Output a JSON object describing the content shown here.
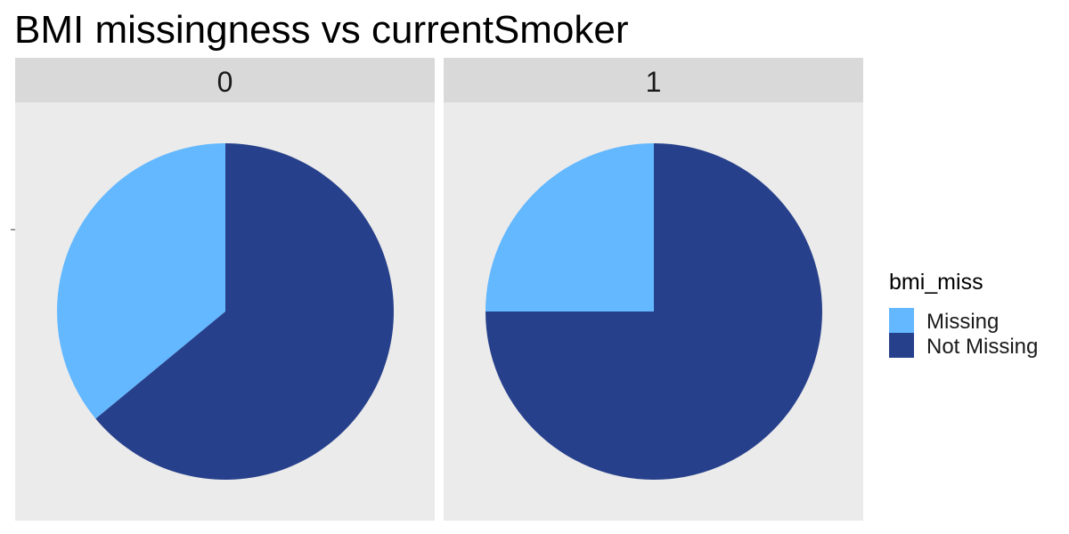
{
  "chart_data": {
    "type": "pie",
    "title": "BMI missingness vs currentSmoker",
    "facet_levels": [
      "0",
      "1"
    ],
    "categories": [
      "Missing",
      "Not Missing"
    ],
    "facets": [
      {
        "name": "0",
        "values": [
          0.36,
          0.64
        ]
      },
      {
        "name": "1",
        "values": [
          0.25,
          0.75
        ]
      }
    ],
    "legend": {
      "title": "bmi_miss",
      "position": "right",
      "entries": [
        "Missing",
        "Not Missing"
      ]
    },
    "colors": {
      "Missing": "#63b8ff",
      "Not Missing": "#27408b",
      "panel_background": "#ebebeb",
      "strip_background": "#d9d9d9"
    },
    "grid": false
  }
}
